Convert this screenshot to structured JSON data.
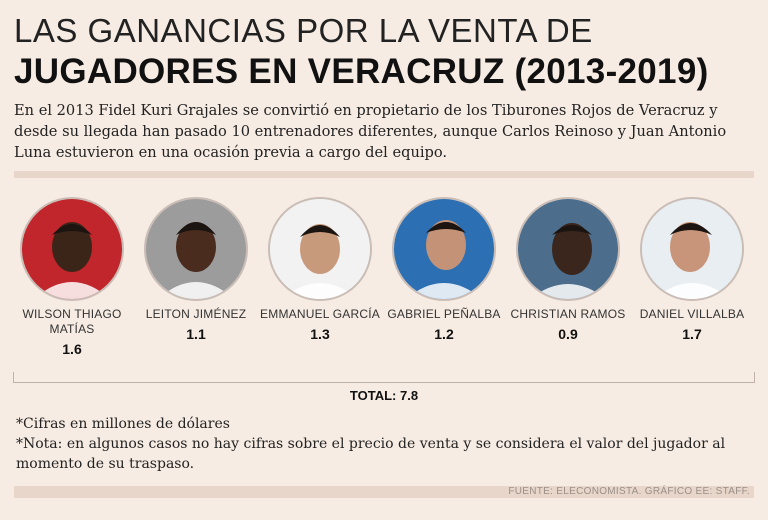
{
  "header": {
    "title_line1": "LAS GANANCIAS POR LA VENTA DE",
    "title_line2": "JUGADORES EN VERACRUZ (2013-2019)",
    "intro": "En el 2013 Fidel Kuri Grajales se convirtió en propietario de los Tiburones Rojos de Veracruz y desde su llegada han pasado 10 entrenadores diferentes, aunque Carlos Reinoso y Juan Antonio Luna estuvieron en una ocasión previa a cargo del equipo."
  },
  "players": [
    {
      "name": "WILSON THIAGO MATÍAS",
      "value": "1.6",
      "bg": "#c0262b",
      "skin": "#3b2418"
    },
    {
      "name": "LEITON JIMÉNEZ",
      "value": "1.1",
      "bg": "#9c9c9c",
      "skin": "#4a2c1e"
    },
    {
      "name": "EMMANUEL GARCÍA",
      "value": "1.3",
      "bg": "#f2f2f2",
      "skin": "#c89a7c"
    },
    {
      "name": "GABRIEL PEÑALBA",
      "value": "1.2",
      "bg": "#2d6fb3",
      "skin": "#c49377"
    },
    {
      "name": "CHRISTIAN RAMOS",
      "value": "0.9",
      "bg": "#4c6e8c",
      "skin": "#3a261c"
    },
    {
      "name": "DANIEL VILLALBA",
      "value": "1.7",
      "bg": "#e9eef3",
      "skin": "#c8957a"
    }
  ],
  "total": "TOTAL: 7.8",
  "notes": {
    "note1": "*Cifras en millones de dólares",
    "note2": "*Nota: en algunos casos no hay cifras sobre el precio de venta y se considera el valor del jugador al momento de su traspaso."
  },
  "source": "FUENTE: ELECONOMISTA. GRÁFICO EE: STAFF."
}
